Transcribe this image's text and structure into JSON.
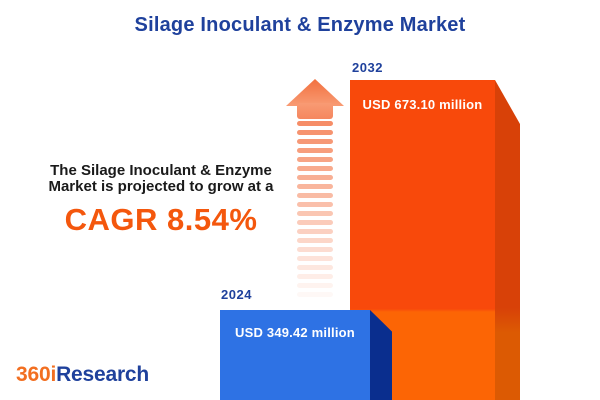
{
  "title": "Silage Inoculant & Enzyme Market",
  "annotation": {
    "line1": "The Silage Inoculant & Enzyme",
    "line2": "Market is projected to grow at a",
    "cagr": "CAGR 8.54%"
  },
  "chart_data": {
    "type": "bar",
    "title": "Silage Inoculant & Enzyme Market",
    "categories": [
      "2024",
      "2032"
    ],
    "values": [
      349.42,
      673.1
    ],
    "unit": "USD million",
    "value_labels": [
      "USD 349.42 million",
      "USD 673.10 million"
    ],
    "cagr_percent": 8.54,
    "legend": "none",
    "style": "3d-bars-infographic",
    "ylim": [
      0,
      673.1
    ]
  },
  "bars": [
    {
      "year": "2024",
      "label": "USD 349.42 million",
      "value": 349.42
    },
    {
      "year": "2032",
      "label": "USD 673.10 million",
      "value": 673.1
    }
  ],
  "arrow": {
    "icon": "up-arrow-growth",
    "stripe_count": 20
  },
  "logo": {
    "prefix": "360i",
    "suffix": "Research"
  },
  "colors": {
    "background": "#FFFFFF",
    "title_blue": "#1F419C",
    "cagr_orange": "#F4570D",
    "text_dark": "#1A1A1A",
    "blue_front": "#2E72E4",
    "blue_side": "#0A2E8E",
    "orange_front_top": "#F8490B",
    "orange_front_bottom": "#FC6505",
    "orange_side_top": "#D84108",
    "orange_side_bottom": "#DC5A03",
    "arrow_orange": "#F2703E",
    "arrow_orange_light": "#F89B74",
    "arrow_stripe": "#F5875F",
    "logo_orange": "#F26F21"
  }
}
